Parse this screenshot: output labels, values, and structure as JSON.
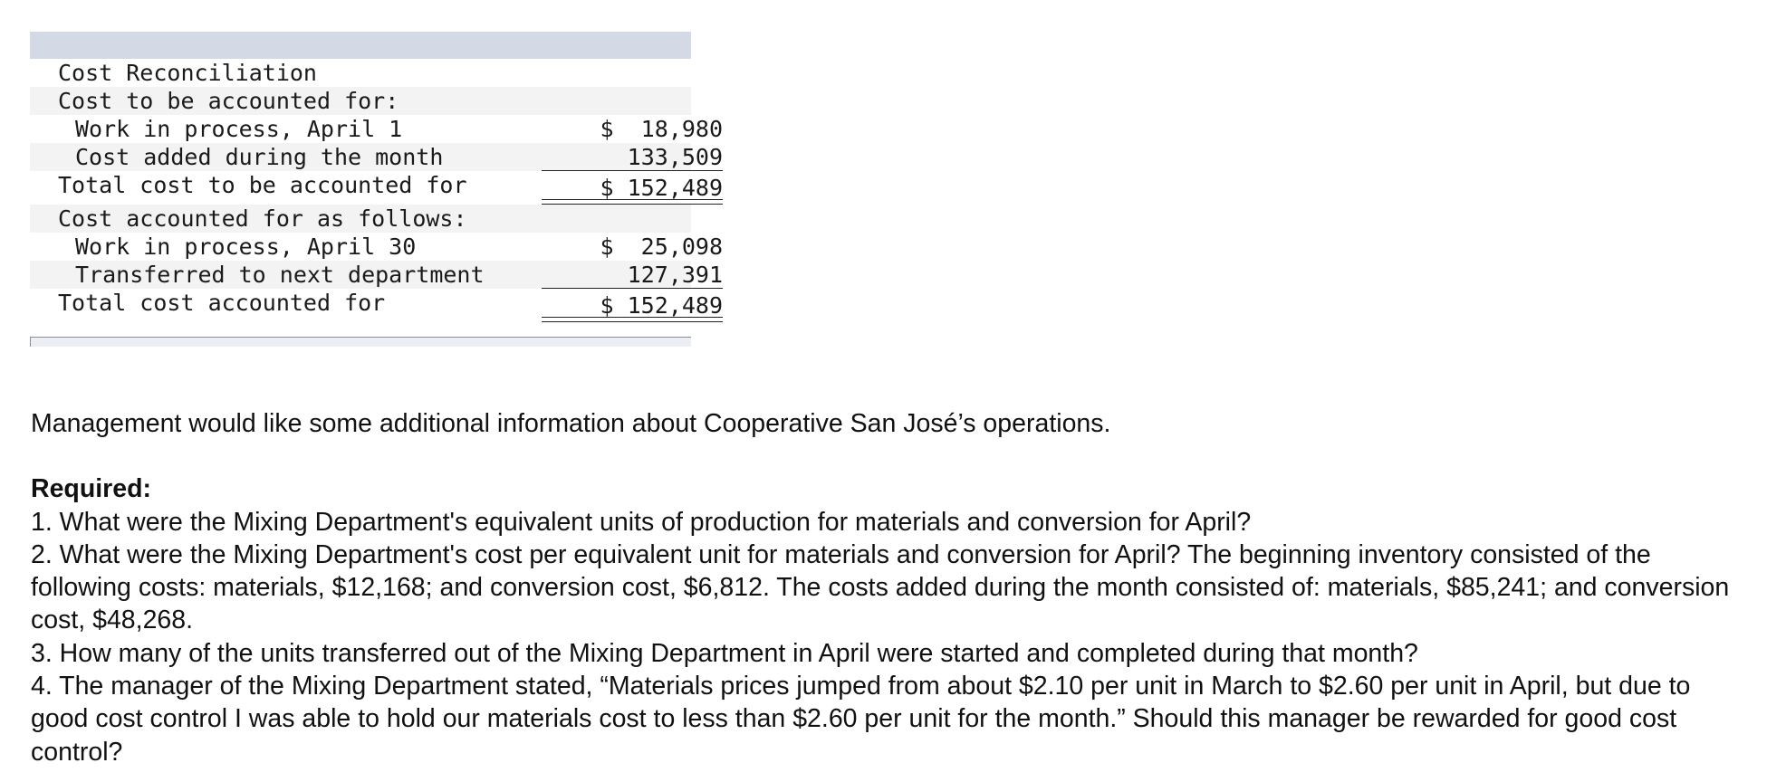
{
  "reconciliation": {
    "title": "Cost Reconciliation",
    "to_be_accounted_header": "Cost to be accounted for:",
    "wip_begin_label": "Work in process, April 1",
    "wip_begin_amount": "$  18,980",
    "added_label": "Cost added during the month",
    "added_amount": "133,509",
    "total_to_account_label": "Total cost to be accounted for",
    "total_to_account_amount": "$ 152,489",
    "accounted_header": "Cost accounted for as follows:",
    "wip_end_label": "Work in process, April 30",
    "wip_end_amount": "$  25,098",
    "transferred_label": "Transferred to next department",
    "transferred_amount": "127,391",
    "total_accounted_label": "Total cost accounted for",
    "total_accounted_amount": "$ 152,489"
  },
  "text": {
    "intro": "Management would like some additional information about Cooperative San José’s operations.",
    "required_title": "Required:",
    "q1": "1. What were the Mixing Department's equivalent units of production for materials and conversion for April?",
    "q2": "2. What were the Mixing Department's cost per equivalent unit for materials and conversion for April? The beginning inventory consisted of the following costs: materials, $12,168; and conversion cost, $6,812. The costs added during the month consisted of: materials, $85,241; and conversion cost, $48,268.",
    "q3": "3. How many of the units transferred out of the Mixing Department in April were started and completed during that month?",
    "q4": "4. The manager of the Mixing Department stated, “Materials prices jumped from about $2.10 per unit in March to $2.60 per unit in April, but due to good cost control I was able to hold our materials cost to less than $2.60 per unit for the month.” Should this manager be rewarded for good cost control?"
  }
}
